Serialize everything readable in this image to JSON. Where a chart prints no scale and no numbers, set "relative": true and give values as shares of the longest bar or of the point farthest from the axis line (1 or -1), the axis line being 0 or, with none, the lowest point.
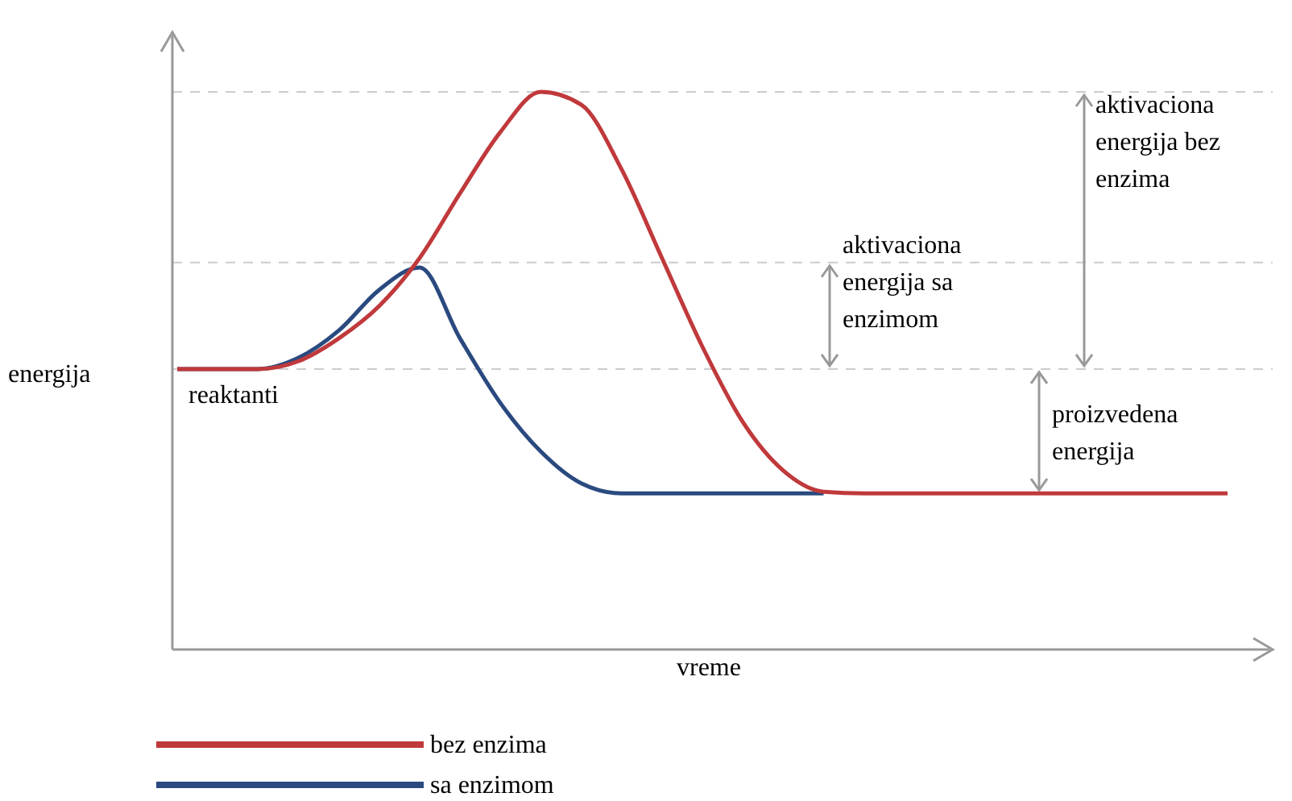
{
  "chart_data": {
    "type": "line",
    "relative": true,
    "xlabel": "vreme",
    "ylabel": "energija",
    "categories": [
      null,
      null,
      null,
      null,
      null,
      null,
      null,
      null,
      null,
      null,
      null,
      null,
      null,
      null,
      null,
      null,
      null,
      null,
      null,
      null,
      null,
      null,
      null,
      null,
      null,
      null,
      null
    ],
    "series": [
      {
        "name": "bez enzima",
        "color": "#c0393b",
        "values": [
          0.503,
          0.503,
          0.503,
          0.517,
          0.558,
          0.616,
          0.702,
          0.818,
          0.928,
          1,
          0.977,
          0.861,
          0.702,
          0.543,
          0.408,
          0.321,
          0.283,
          0.28,
          0.28,
          0.28,
          0.28,
          0.28,
          0.28,
          0.28,
          0.28,
          0.28,
          0.28
        ]
      },
      {
        "name": "sa enzimom",
        "color": "#2a4a7f",
        "values": [
          0.503,
          0.503,
          0.503,
          0.523,
          0.572,
          0.645,
          0.685,
          0.558,
          0.442,
          0.355,
          0.298,
          0.28,
          0.28,
          0.28,
          0.28,
          0.28,
          0.28,
          null,
          null,
          null,
          null,
          null,
          null,
          null,
          null,
          null,
          null
        ]
      }
    ],
    "ref_lines": [
      {
        "axis": "y",
        "value": 1,
        "color": "#cccccc",
        "line_style": "dashed"
      },
      {
        "axis": "y",
        "value": 0.694,
        "color": "#cccccc",
        "line_style": "dashed"
      },
      {
        "axis": "y",
        "value": 0.503,
        "color": "#cccccc",
        "line_style": "dashed"
      }
    ],
    "annotations": [
      "reaktanti",
      "aktivaciona\nenergija sa\nenzimom",
      "aktivaciona\nenergija bez\nenzima",
      "proizvedena\nenergija"
    ],
    "legend": "bottom left",
    "marker": "none",
    "line_style": "solid"
  }
}
